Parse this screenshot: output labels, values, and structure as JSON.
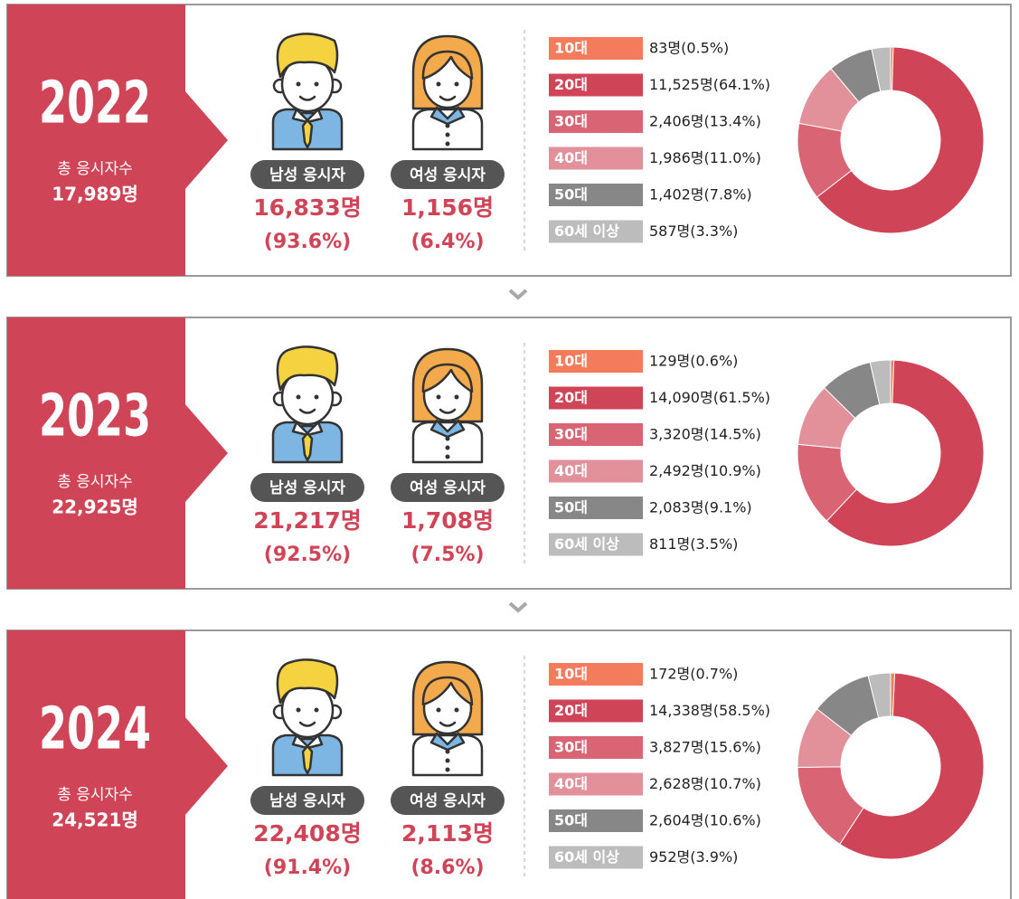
{
  "chart_data": [
    {
      "type": "pie",
      "donut": true,
      "year": "2022",
      "total_caption": "총 응시자수",
      "total": "17,989명",
      "genders": [
        {
          "name": "남성 응시자",
          "count": "16,833명",
          "share": "(93.6%)"
        },
        {
          "name": "여성 응시자",
          "count": "1,156명",
          "share": "(6.4%)"
        }
      ],
      "categories": [
        "10대",
        "20대",
        "30대",
        "40대",
        "50대",
        "60세 이상"
      ],
      "colors": [
        "#f47c5c",
        "#cf4456",
        "#d96574",
        "#e2909a",
        "#878787",
        "#bcbcbc"
      ],
      "values": [
        83,
        11525,
        2406,
        1986,
        1402,
        587
      ],
      "value_labels": [
        "83명(0.5%)",
        "11,525명(64.1%)",
        "2,406명(13.4%)",
        "1,986명(11.0%)",
        "1,402명(7.8%)",
        "587명(3.3%)"
      ]
    },
    {
      "type": "pie",
      "donut": true,
      "year": "2023",
      "total_caption": "총 응시자수",
      "total": "22,925명",
      "genders": [
        {
          "name": "남성 응시자",
          "count": "21,217명",
          "share": "(92.5%)"
        },
        {
          "name": "여성 응시자",
          "count": "1,708명",
          "share": "(7.5%)"
        }
      ],
      "categories": [
        "10대",
        "20대",
        "30대",
        "40대",
        "50대",
        "60세 이상"
      ],
      "colors": [
        "#f47c5c",
        "#cf4456",
        "#d96574",
        "#e2909a",
        "#878787",
        "#bcbcbc"
      ],
      "values": [
        129,
        14090,
        3320,
        2492,
        2083,
        811
      ],
      "value_labels": [
        "129명(0.6%)",
        "14,090명(61.5%)",
        "3,320명(14.5%)",
        "2,492명(10.9%)",
        "2,083명(9.1%)",
        "811명(3.5%)"
      ]
    },
    {
      "type": "pie",
      "donut": true,
      "year": "2024",
      "total_caption": "총 응시자수",
      "total": "24,521명",
      "genders": [
        {
          "name": "남성 응시자",
          "count": "22,408명",
          "share": "(91.4%)"
        },
        {
          "name": "여성 응시자",
          "count": "2,113명",
          "share": "(8.6%)"
        }
      ],
      "categories": [
        "10대",
        "20대",
        "30대",
        "40대",
        "50대",
        "60세 이상"
      ],
      "colors": [
        "#f47c5c",
        "#cf4456",
        "#d96574",
        "#e2909a",
        "#878787",
        "#bcbcbc"
      ],
      "values": [
        172,
        14338,
        3827,
        2628,
        2604,
        952
      ],
      "value_labels": [
        "172명(0.7%)",
        "14,338명(58.5%)",
        "3,827명(15.6%)",
        "2,628명(10.7%)",
        "2,604명(10.6%)",
        "952명(3.9%)"
      ]
    }
  ]
}
